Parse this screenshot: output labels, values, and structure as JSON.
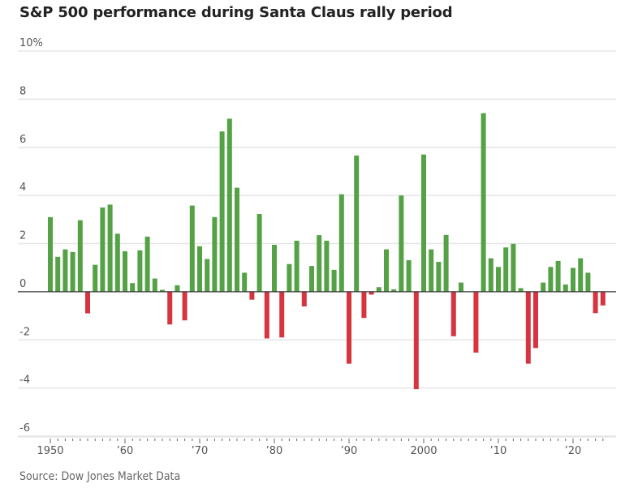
{
  "chart_data": {
    "type": "bar",
    "title": "S&P 500 performance during Santa Claus rally period",
    "xlabel": "",
    "ylabel": "",
    "ylim": [
      -6,
      10
    ],
    "y_ticks": [
      10,
      8,
      6,
      4,
      2,
      0,
      -2,
      -4,
      -6
    ],
    "y_tick_labels": [
      "10%",
      "8",
      "6",
      "4",
      "2",
      "0",
      "-2",
      "-4",
      "-6"
    ],
    "x_tick_years": [
      1950,
      1960,
      1970,
      1980,
      1990,
      2000,
      2010,
      2020
    ],
    "x_tick_labels": [
      "1950",
      "’60",
      "’70",
      "’80",
      "’90",
      "2000",
      "’10",
      "’20"
    ],
    "grid": true,
    "colors": {
      "positive": "#54a245",
      "negative": "#d6343f",
      "baseline": "#333333",
      "grid": "#e6e6e6"
    },
    "categories": [
      1950,
      1951,
      1952,
      1953,
      1954,
      1955,
      1956,
      1957,
      1958,
      1959,
      1960,
      1961,
      1962,
      1963,
      1964,
      1965,
      1966,
      1967,
      1968,
      1969,
      1970,
      1971,
      1972,
      1973,
      1974,
      1975,
      1976,
      1977,
      1978,
      1979,
      1980,
      1981,
      1982,
      1983,
      1984,
      1985,
      1986,
      1987,
      1988,
      1989,
      1990,
      1991,
      1992,
      1993,
      1994,
      1995,
      1996,
      1997,
      1998,
      1999,
      2000,
      2001,
      2002,
      2003,
      2004,
      2005,
      2006,
      2007,
      2008,
      2009,
      2010,
      2011,
      2012,
      2013,
      2014,
      2015,
      2016,
      2017,
      2018,
      2019,
      2020,
      2021,
      2022,
      2023,
      2024
    ],
    "values": [
      3.1,
      1.45,
      1.76,
      1.65,
      2.97,
      -0.9,
      1.12,
      3.5,
      3.62,
      2.41,
      1.68,
      0.36,
      1.72,
      2.29,
      0.55,
      0.08,
      -1.36,
      0.27,
      -1.19,
      3.58,
      1.89,
      1.36,
      3.1,
      6.66,
      7.19,
      4.32,
      0.79,
      -0.33,
      3.23,
      -1.94,
      1.95,
      -1.9,
      1.15,
      2.12,
      -0.61,
      1.07,
      2.35,
      2.12,
      0.91,
      4.05,
      -2.99,
      5.66,
      -1.09,
      -0.12,
      0.19,
      1.76,
      0.1,
      4.0,
      1.31,
      -4.05,
      5.7,
      1.76,
      1.24,
      2.36,
      -1.85,
      0.38,
      0,
      -2.53,
      7.42,
      1.39,
      1.03,
      1.84,
      1.99,
      0.15,
      -2.99,
      -2.34,
      0.38,
      1.03,
      1.28,
      0.3,
      0.99,
      1.39,
      0.79,
      -0.89,
      -0.57
    ],
    "source": "Source: Dow Jones Market Data"
  }
}
